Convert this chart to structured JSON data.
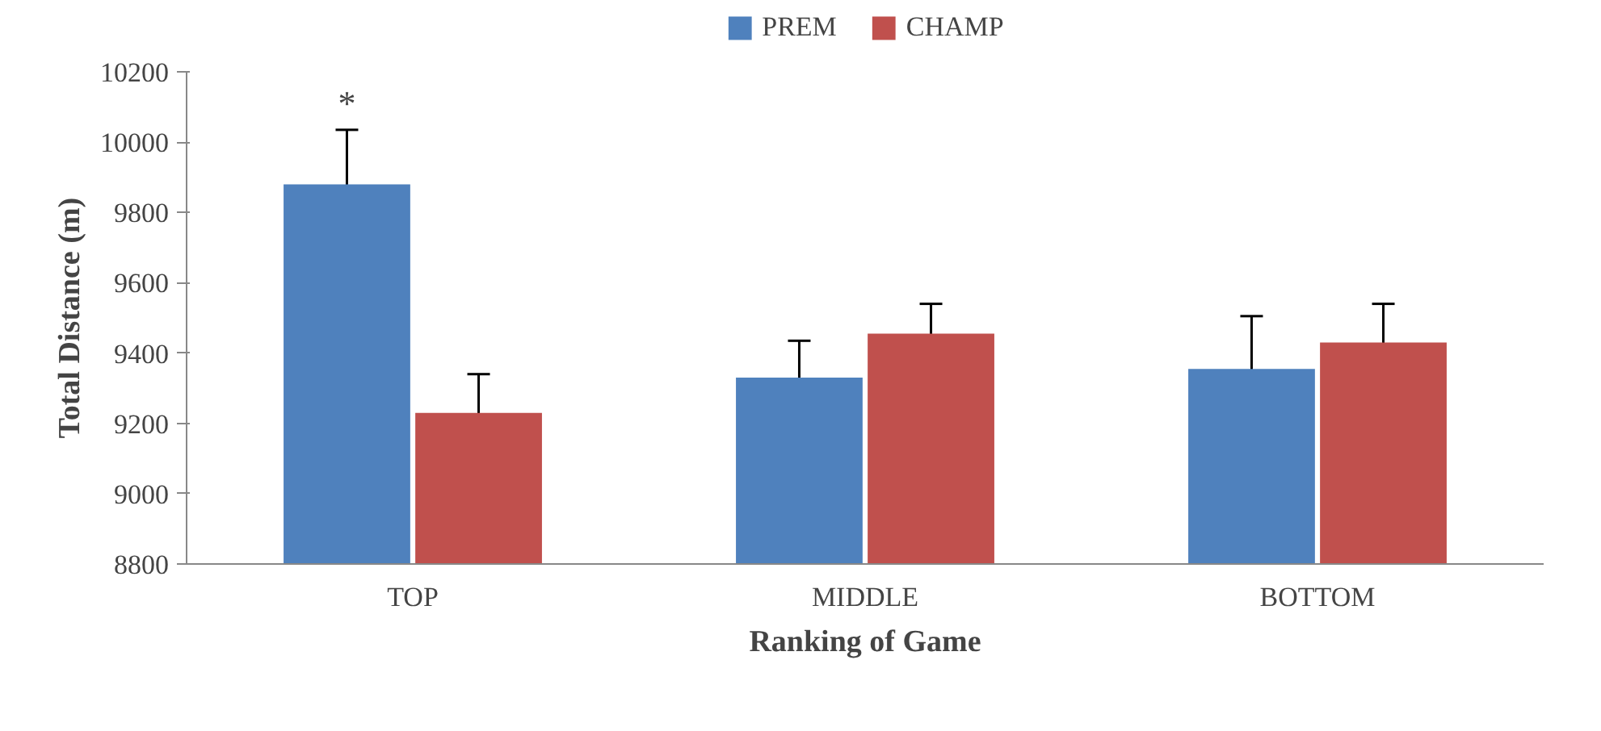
{
  "chart_data": {
    "type": "bar",
    "xlabel": "Ranking of Game",
    "ylabel": "Total Distance (m)",
    "categories": [
      "TOP",
      "MIDDLE",
      "BOTTOM"
    ],
    "series": [
      {
        "name": "PREM",
        "color": "#4f81bd",
        "values": [
          9880,
          9330,
          9355
        ],
        "errors": [
          155,
          105,
          150
        ]
      },
      {
        "name": "CHAMP",
        "color": "#c0504d",
        "values": [
          9230,
          9455,
          9430
        ],
        "errors": [
          110,
          85,
          110
        ]
      }
    ],
    "ylim": [
      8800,
      10200
    ],
    "yticks": [
      8800,
      9000,
      9200,
      9400,
      9600,
      9800,
      10000,
      10200
    ],
    "grid": false,
    "legend": "top",
    "annotations": [
      "*"
    ]
  }
}
